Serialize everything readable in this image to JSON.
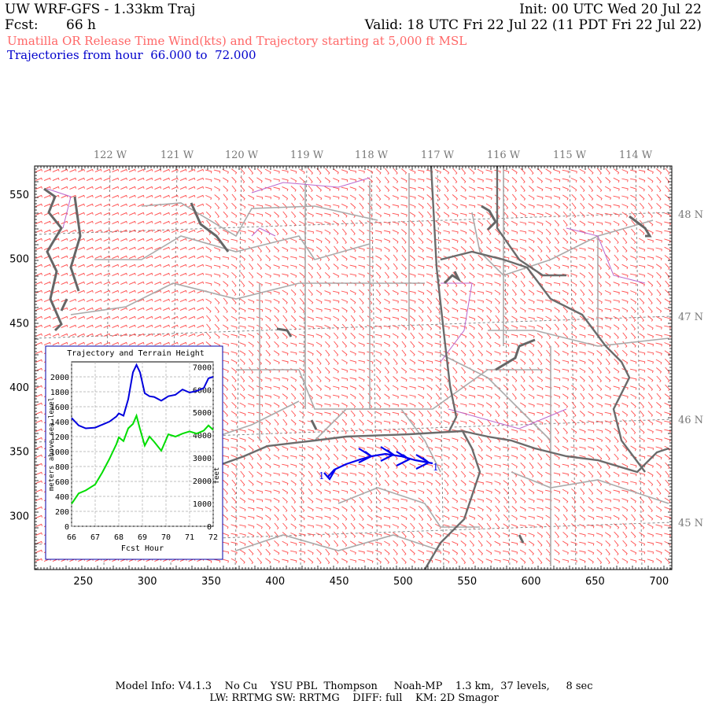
{
  "header": {
    "title": "UW WRF-GFS - 1.33km Traj",
    "init": "Init: 00 UTC Wed 20 Jul 22",
    "fcst_label": "Fcst:",
    "fcst_value": "66 h",
    "valid": "Valid: 18 UTC Fri 22 Jul 22 (11 PDT Fri 22 Jul 22)",
    "subtitle": "Umatilla OR Release Time Wind(kts) and Trajectory starting at 5,000 ft MSL",
    "traj_range": "Trajectories from hour  66.000 to  72.000"
  },
  "colors": {
    "title": "#000000",
    "subtitle": "#ff6666",
    "traj_text": "#0000cc",
    "wind_barbs": "#ff4d4d",
    "state_borders": "#888888",
    "county_borders": "#aaaaaa",
    "coast_water": "#666666",
    "lat_lon_grid": "#888888",
    "trajectory": "#0000ee",
    "terrain_line": "#00dd00",
    "traj_height_line": "#0000dd",
    "purple_lines": "#bb66cc"
  },
  "map": {
    "top_lon_labels": [
      "122 W",
      "121 W",
      "120 W",
      "119 W",
      "118 W",
      "117 W",
      "116 W",
      "115 W",
      "114 W"
    ],
    "right_lat_labels": [
      "48 N",
      "47 N",
      "46 N",
      "45 N"
    ],
    "x_axis_labels": [
      "250",
      "300",
      "350",
      "400",
      "450",
      "500",
      "550",
      "600",
      "650",
      "700"
    ],
    "y_axis_labels": [
      "550",
      "500",
      "450",
      "400",
      "350",
      "300"
    ],
    "x_range": [
      212,
      710
    ],
    "y_range": [
      258,
      572
    ],
    "trajectory_start_label": "1",
    "trajectory_end_label": "1"
  },
  "inset": {
    "title": "Trajectory and Terrain Height",
    "xlabel": "Fcst Hour",
    "ylabel_left": "meters above sea level",
    "ylabel_right": "feet",
    "x_ticks": [
      "66",
      "67",
      "68",
      "69",
      "70",
      "71",
      "72"
    ],
    "y_ticks_left": [
      "0",
      "200",
      "400",
      "600",
      "800",
      "1000",
      "1200",
      "1400",
      "1600",
      "1800",
      "2000"
    ],
    "y_ticks_right": [
      "0",
      "1000",
      "2000",
      "3000",
      "4000",
      "5000",
      "6000",
      "7000"
    ]
  },
  "chart_data": {
    "type": "line",
    "title": "Trajectory and Terrain Height",
    "xlabel": "Fcst Hour",
    "ylabel": "meters above sea level",
    "xlim": [
      66,
      72
    ],
    "ylim": [
      0,
      2200
    ],
    "series": [
      {
        "color": "#0000dd",
        "x": [
          66,
          66.3,
          66.6,
          67,
          67.3,
          67.6,
          67.9,
          68.0,
          68.2,
          68.4,
          68.6,
          68.75,
          68.9,
          69.1,
          69.3,
          69.5,
          69.8,
          70.1,
          70.4,
          70.7,
          71.0,
          71.3,
          71.6,
          71.8,
          72
        ],
        "y": [
          1450,
          1350,
          1310,
          1320,
          1360,
          1400,
          1470,
          1510,
          1480,
          1700,
          2060,
          2160,
          2060,
          1780,
          1740,
          1730,
          1680,
          1740,
          1760,
          1830,
          1790,
          1810,
          1850,
          1980,
          2000
        ]
      },
      {
        "color": "#00dd00",
        "x": [
          66,
          66.3,
          66.6,
          67,
          67.3,
          67.6,
          67.9,
          68.0,
          68.2,
          68.4,
          68.6,
          68.75,
          68.9,
          69.1,
          69.3,
          69.5,
          69.8,
          70.1,
          70.4,
          70.7,
          71.0,
          71.3,
          71.6,
          71.8,
          72
        ],
        "y": [
          300,
          440,
          480,
          560,
          720,
          900,
          1100,
          1190,
          1140,
          1310,
          1370,
          1480,
          1300,
          1080,
          1200,
          1130,
          1010,
          1230,
          1200,
          1240,
          1270,
          1240,
          1280,
          1350,
          1290
        ]
      }
    ]
  },
  "footer": {
    "line1": "Model Info: V4.1.3    No Cu    YSU PBL  Thompson     Noah-MP    1.3 km,  37 levels,     8 sec",
    "line2": "LW: RRTMG SW: RRTMG    DIFF: full    KM: 2D Smagor"
  }
}
